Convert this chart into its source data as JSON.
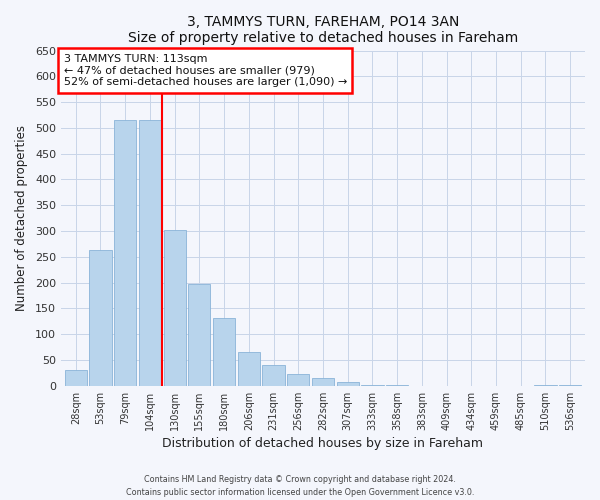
{
  "title": "3, TAMMYS TURN, FAREHAM, PO14 3AN",
  "subtitle": "Size of property relative to detached houses in Fareham",
  "xlabel": "Distribution of detached houses by size in Fareham",
  "ylabel": "Number of detached properties",
  "bar_color": "#b8d4ec",
  "bar_edge_color": "#8ab4d8",
  "categories": [
    "28sqm",
    "53sqm",
    "79sqm",
    "104sqm",
    "130sqm",
    "155sqm",
    "180sqm",
    "206sqm",
    "231sqm",
    "256sqm",
    "282sqm",
    "307sqm",
    "333sqm",
    "358sqm",
    "383sqm",
    "409sqm",
    "434sqm",
    "459sqm",
    "485sqm",
    "510sqm",
    "536sqm"
  ],
  "values": [
    30,
    263,
    515,
    515,
    302,
    197,
    132,
    65,
    40,
    23,
    15,
    8,
    2,
    2,
    0,
    0,
    0,
    0,
    0,
    2,
    2
  ],
  "ylim": [
    0,
    650
  ],
  "yticks": [
    0,
    50,
    100,
    150,
    200,
    250,
    300,
    350,
    400,
    450,
    500,
    550,
    600,
    650
  ],
  "red_line_x": 3.5,
  "annotation_title": "3 TAMMYS TURN: 113sqm",
  "annotation_line1": "← 47% of detached houses are smaller (979)",
  "annotation_line2": "52% of semi-detached houses are larger (1,090) →",
  "footer1": "Contains HM Land Registry data © Crown copyright and database right 2024.",
  "footer2": "Contains public sector information licensed under the Open Government Licence v3.0.",
  "background_color": "#f4f6fc",
  "plot_background_color": "#f4f6fc",
  "grid_color": "#c8d4e8"
}
